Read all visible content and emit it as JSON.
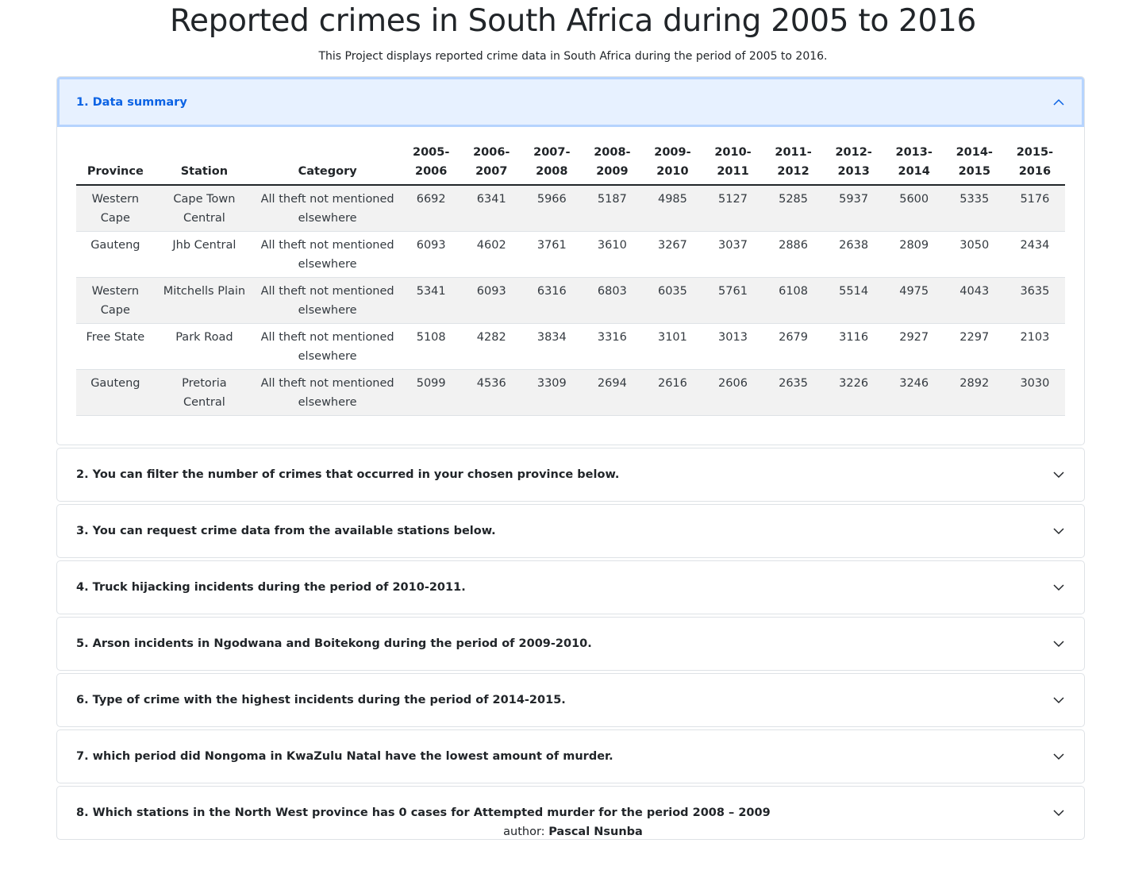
{
  "title": "Reported crimes in South Africa during 2005 to 2016",
  "subtitle": "This Project displays reported crime data in South Africa during the period of 2005 to 2016.",
  "sections": [
    {
      "label": "1. Data summary",
      "open": true
    },
    {
      "label": "2. You can filter the number of crimes that occurred in your chosen province below.",
      "open": false
    },
    {
      "label": "3. You can request crime data from the available stations below.",
      "open": false
    },
    {
      "label": "4. Truck hijacking incidents during the period of 2010-2011.",
      "open": false
    },
    {
      "label": "5. Arson incidents in Ngodwana and Boitekong during the period of 2009-2010.",
      "open": false
    },
    {
      "label": "6. Type of crime with the highest incidents during the period of 2014-2015.",
      "open": false
    },
    {
      "label": "7. which period did Nongoma in KwaZulu Natal have the lowest amount of murder.",
      "open": false
    },
    {
      "label": "8. Which stations in the North West province has 0 cases for Attempted murder for the period 2008 – 2009",
      "open": false
    }
  ],
  "table": {
    "headers": [
      "Province",
      "Station",
      "Category",
      "2005-2006",
      "2006-2007",
      "2007-2008",
      "2008-2009",
      "2009-2010",
      "2010-2011",
      "2011-2012",
      "2012-2013",
      "2013-2014",
      "2014-2015",
      "2015-2016"
    ],
    "rows": [
      [
        "Western Cape",
        "Cape Town Central",
        "All theft not mentioned elsewhere",
        "6692",
        "6341",
        "5966",
        "5187",
        "4985",
        "5127",
        "5285",
        "5937",
        "5600",
        "5335",
        "5176"
      ],
      [
        "Gauteng",
        "Jhb Central",
        "All theft not mentioned elsewhere",
        "6093",
        "4602",
        "3761",
        "3610",
        "3267",
        "3037",
        "2886",
        "2638",
        "2809",
        "3050",
        "2434"
      ],
      [
        "Western Cape",
        "Mitchells Plain",
        "All theft not mentioned elsewhere",
        "5341",
        "6093",
        "6316",
        "6803",
        "6035",
        "5761",
        "6108",
        "5514",
        "4975",
        "4043",
        "3635"
      ],
      [
        "Free State",
        "Park Road",
        "All theft not mentioned elsewhere",
        "5108",
        "4282",
        "3834",
        "3316",
        "3101",
        "3013",
        "2679",
        "3116",
        "2927",
        "2297",
        "2103"
      ],
      [
        "Gauteng",
        "Pretoria Central",
        "All theft not mentioned elsewhere",
        "5099",
        "4536",
        "3309",
        "2694",
        "2616",
        "2606",
        "2635",
        "3226",
        "3246",
        "2892",
        "3030"
      ]
    ]
  },
  "footer": {
    "prefix": "author:",
    "author": "Pascal Nsunba"
  },
  "colors": {
    "accent": "#0c63e4",
    "open_header_bg": "#e7f1ff",
    "stripe": "#f2f2f2"
  },
  "icons": {
    "open": "chevron-up-icon",
    "closed": "chevron-down-icon"
  }
}
